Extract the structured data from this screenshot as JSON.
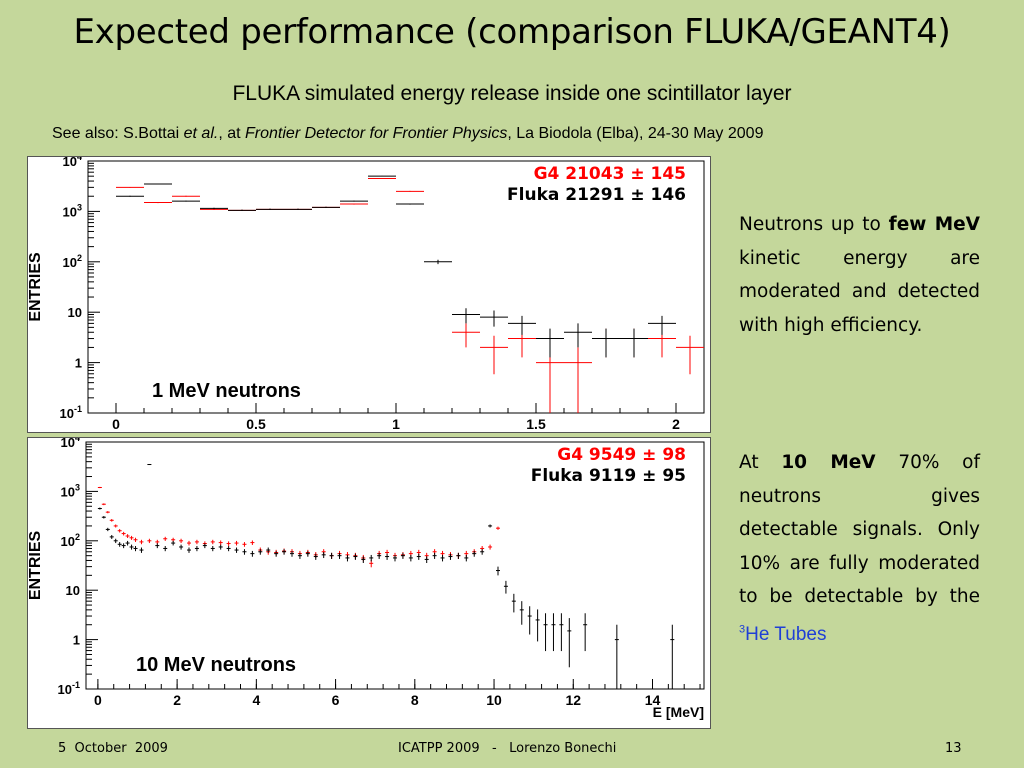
{
  "slide": {
    "title": "Expected performance (comparison FLUKA/GEANT4)",
    "subtitle": "FLUKA simulated energy release inside one scintillator layer",
    "reference": {
      "prefix": "See also: S.Bottai ",
      "etal": "et al.",
      "mid": ", at ",
      "venue": "Frontier Detector for Frontier Physics",
      "suffix": ", La Biodola (Elba), 24-30 May 2009"
    },
    "side_text_1": {
      "part1": "Neutrons up to ",
      "bold1": "few MeV",
      "part2": " kinetic energy are moderated and detected with high efficiency."
    },
    "side_text_2": {
      "part1": "At ",
      "bold1": "10 MeV",
      "part2": " 70% of neutrons gives detectable signals. Only 10% are fully moderated to be detectable by the ",
      "he_sup": "3",
      "he_text": "He Tubes"
    },
    "footer": {
      "date": "5  October  2009",
      "conference": "ICATPP 2009   -   Lorenzo Bonechi",
      "page": "13"
    },
    "colors": {
      "background": "#c4d79b",
      "g4": "#ff0000",
      "fluka": "#000000",
      "link": "#1f3fd6"
    }
  },
  "chart_data": [
    {
      "type": "scatter",
      "title": "1 MeV neutrons",
      "ylabel": "ENTRIES",
      "xlabel": "",
      "yscale": "log",
      "ylim": [
        0.1,
        10000
      ],
      "xlim": [
        -0.1,
        2.1
      ],
      "x_ticks": [
        "0",
        "0.5",
        "1",
        "1.5",
        "2"
      ],
      "x_tick_values": [
        0,
        0.5,
        1,
        1.5,
        2
      ],
      "y_ticks": [
        "10^-1",
        "1",
        "10",
        "10^2",
        "10^3",
        "10^4"
      ],
      "legend": [
        {
          "name": "G4",
          "label": "G4 21043 ± 145",
          "color": "#ff0000"
        },
        {
          "name": "Fluka",
          "label": "Fluka 21291 ± 146",
          "color": "#000000"
        }
      ],
      "binwidth": 0.1,
      "series": [
        {
          "name": "G4",
          "x": [
            0.05,
            0.15,
            0.25,
            0.35,
            0.45,
            0.55,
            0.65,
            0.75,
            0.85,
            0.95,
            1.05,
            1.15,
            1.25,
            1.35,
            1.45,
            1.55,
            1.65,
            1.75,
            1.85,
            1.95,
            2.05
          ],
          "y": [
            3000,
            1500,
            2000,
            1100,
            1050,
            1100,
            1100,
            1200,
            1400,
            4500,
            2500,
            0,
            4,
            2,
            3,
            1,
            1,
            3,
            3,
            3,
            2
          ]
        },
        {
          "name": "Fluka",
          "x": [
            0.05,
            0.15,
            0.25,
            0.35,
            0.45,
            0.55,
            0.65,
            0.75,
            0.85,
            0.95,
            1.05,
            1.15,
            1.25,
            1.35,
            1.45,
            1.55,
            1.65,
            1.75,
            1.85,
            1.95,
            2.05
          ],
          "y": [
            2000,
            3500,
            1600,
            1150,
            1050,
            1100,
            1100,
            1200,
            1600,
            5000,
            1400,
            100,
            9,
            8,
            6,
            3,
            4,
            3,
            3,
            6,
            0
          ]
        }
      ]
    },
    {
      "type": "scatter",
      "title": "10 MeV neutrons",
      "ylabel": "ENTRIES",
      "xlabel": "E [MeV]",
      "yscale": "log",
      "ylim": [
        0.1,
        10000
      ],
      "xlim": [
        -0.3,
        15.3
      ],
      "x_ticks": [
        "0",
        "2",
        "4",
        "6",
        "8",
        "10",
        "12",
        "14"
      ],
      "x_tick_values": [
        0,
        2,
        4,
        6,
        8,
        10,
        12,
        14
      ],
      "y_ticks": [
        "10^-1",
        "1",
        "10",
        "10^2",
        "10^3",
        "10^4"
      ],
      "legend": [
        {
          "name": "G4",
          "label": "G4 9549 ± 98",
          "color": "#ff0000"
        },
        {
          "name": "Fluka",
          "label": "Fluka 9119 ± 95",
          "color": "#000000"
        }
      ],
      "binwidth": 0.1,
      "series": [
        {
          "name": "G4",
          "x": [
            0.05,
            0.15,
            0.25,
            0.35,
            0.45,
            0.55,
            0.65,
            0.75,
            0.85,
            0.95,
            1.1,
            1.3,
            1.5,
            1.7,
            1.9,
            2.1,
            2.3,
            2.5,
            2.7,
            2.9,
            3.1,
            3.3,
            3.5,
            3.7,
            3.9,
            4.1,
            4.3,
            4.5,
            4.7,
            4.9,
            5.1,
            5.3,
            5.5,
            5.7,
            5.9,
            6.1,
            6.3,
            6.5,
            6.7,
            6.9,
            7.1,
            7.3,
            7.5,
            7.7,
            7.9,
            8.1,
            8.3,
            8.5,
            8.7,
            8.9,
            9.1,
            9.3,
            9.5,
            9.7,
            9.9,
            10.1
          ],
          "y": [
            1200,
            550,
            380,
            260,
            200,
            160,
            140,
            125,
            115,
            105,
            95,
            100,
            95,
            110,
            105,
            100,
            90,
            95,
            88,
            95,
            92,
            88,
            90,
            85,
            92,
            65,
            60,
            58,
            62,
            60,
            55,
            58,
            52,
            60,
            50,
            55,
            52,
            50,
            45,
            35,
            55,
            58,
            50,
            52,
            55,
            58,
            50,
            60,
            55,
            52,
            50,
            55,
            60,
            70,
            75,
            180
          ]
        },
        {
          "name": "Fluka",
          "x": [
            0.05,
            0.15,
            0.25,
            0.35,
            0.45,
            0.55,
            0.65,
            0.75,
            0.85,
            0.95,
            1.1,
            1.3,
            1.5,
            1.7,
            1.9,
            2.1,
            2.3,
            2.5,
            2.7,
            2.9,
            3.1,
            3.3,
            3.5,
            3.7,
            3.9,
            4.1,
            4.3,
            4.5,
            4.7,
            4.9,
            5.1,
            5.3,
            5.5,
            5.7,
            5.9,
            6.1,
            6.3,
            6.5,
            6.7,
            6.9,
            7.1,
            7.3,
            7.5,
            7.7,
            7.9,
            8.1,
            8.3,
            8.5,
            8.7,
            8.9,
            9.1,
            9.3,
            9.5,
            9.7,
            9.9,
            10.1,
            10.3,
            10.5,
            10.7,
            10.9,
            11.1,
            11.3,
            11.5,
            11.7,
            11.9,
            12.3,
            13.1,
            14.5
          ],
          "y": [
            450,
            300,
            170,
            120,
            100,
            85,
            80,
            90,
            75,
            70,
            65,
            3500,
            80,
            70,
            90,
            75,
            65,
            70,
            80,
            70,
            75,
            70,
            65,
            60,
            55,
            60,
            65,
            55,
            60,
            55,
            50,
            55,
            48,
            52,
            50,
            50,
            45,
            48,
            42,
            45,
            50,
            48,
            45,
            50,
            45,
            48,
            42,
            50,
            45,
            48,
            50,
            45,
            55,
            60,
            200,
            25,
            12,
            6,
            4,
            3,
            2.5,
            2,
            2,
            2,
            1.5,
            2,
            1,
            1
          ]
        }
      ]
    }
  ]
}
